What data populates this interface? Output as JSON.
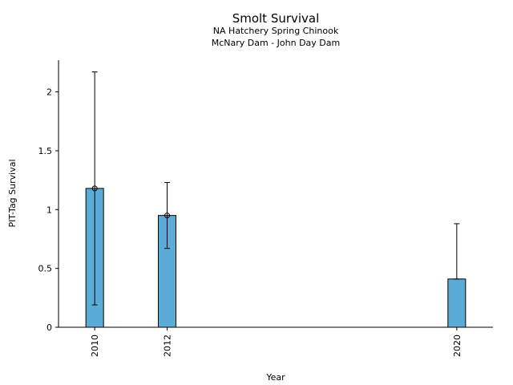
{
  "chart_data": {
    "type": "bar",
    "title": "Smolt Survival",
    "subtitle_lines": [
      "NA Hatchery Spring Chinook",
      "McNary Dam - John Day Dam"
    ],
    "xlabel": "Year",
    "ylabel": "PIT-Tag Survival",
    "x": [
      2010,
      2012,
      2020
    ],
    "x_tick_labels": [
      "2010",
      "2012",
      "2020"
    ],
    "values": [
      1.18,
      0.95,
      0.41
    ],
    "error_lower": [
      0.19,
      0.67,
      0.41
    ],
    "error_upper": [
      2.17,
      1.23,
      0.88
    ],
    "markers": [
      1.18,
      0.95,
      null
    ],
    "xlim": [
      2009,
      2021
    ],
    "ylim": [
      0,
      2.27
    ],
    "y_ticks": [
      0,
      0.5,
      1,
      1.5,
      2
    ],
    "y_tick_labels": [
      "0",
      "0.5",
      "1",
      "1.5",
      "2"
    ],
    "bar_color": "#5aabd6",
    "grid": false
  }
}
